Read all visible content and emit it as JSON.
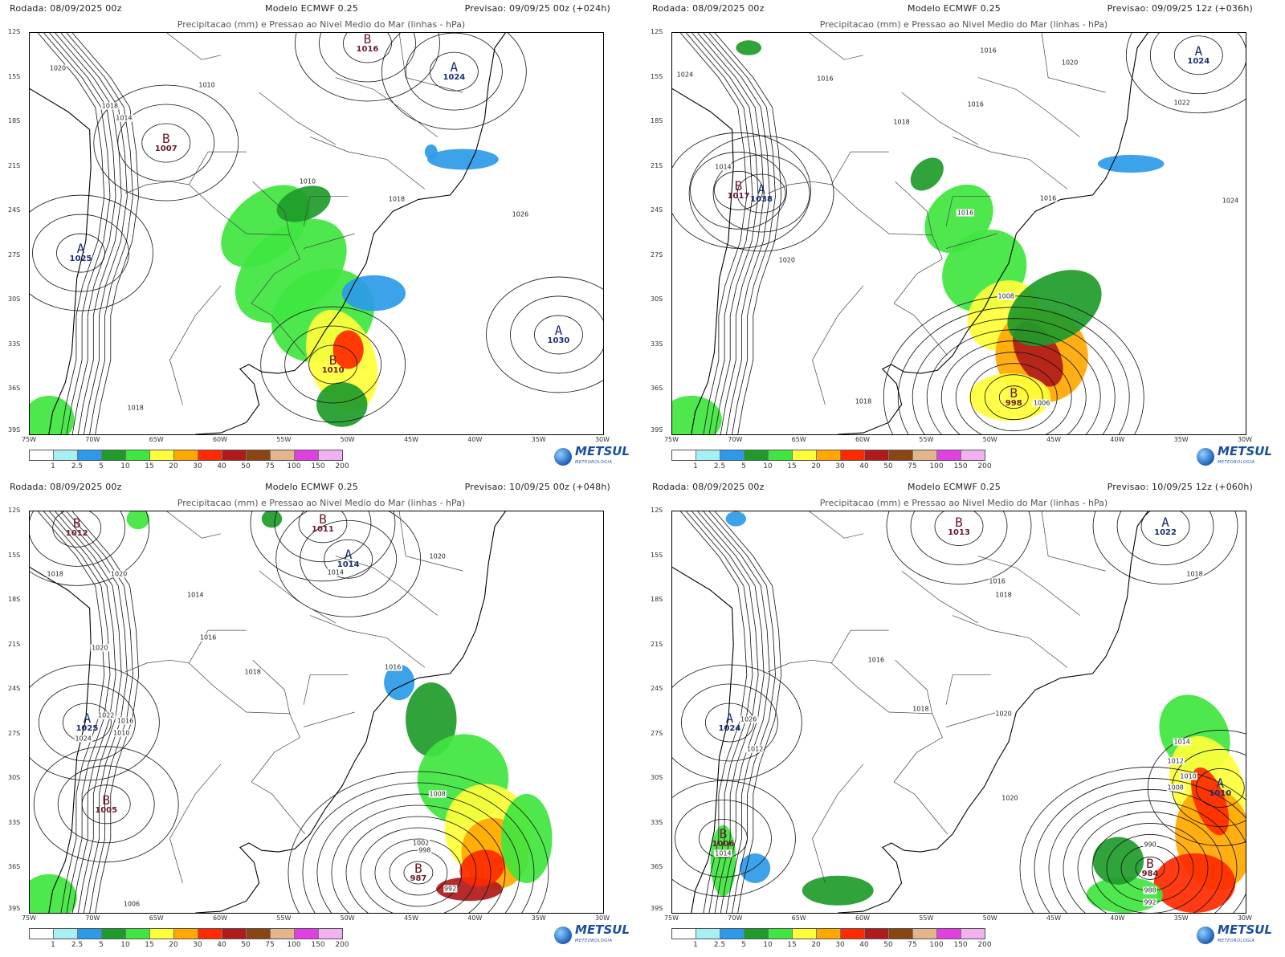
{
  "scale": {
    "ticks": [
      "1",
      "2.5",
      "5",
      "10",
      "15",
      "20",
      "30",
      "40",
      "50",
      "75",
      "100",
      "150",
      "200"
    ],
    "colors": [
      "#ffffff",
      "#a6f0f5",
      "#2b9ae8",
      "#1e9b2a",
      "#3fe63f",
      "#ffff3a",
      "#ffa800",
      "#ff2a00",
      "#b01a1a",
      "#8b4513",
      "#e4b48c",
      "#e040e0",
      "#f2b2f2"
    ]
  },
  "logo": {
    "name": "METSUL",
    "sub": "METEOROLOGIA"
  },
  "panels": [
    {
      "run": "Rodada: 08/09/2025 00z",
      "model": "Modelo ECMWF 0.25",
      "forecast": "Previsao: 09/09/25 00z (+024h)",
      "subtitle": "Precipitacao (mm) e Pressao ao Nivel Medio do Mar (linhas - hPa)",
      "lats": [
        "12S",
        "15S",
        "18S",
        "21S",
        "24S",
        "27S",
        "30S",
        "33S",
        "36S",
        "39S"
      ],
      "lons": [
        "75W",
        "70W",
        "65W",
        "60W",
        "55W",
        "50W",
        "45W",
        "40W",
        "35W",
        "30W"
      ],
      "centers": [
        {
          "type": "low",
          "letter": "B",
          "value": "1016",
          "lon": -48.5,
          "lat": -12.7
        },
        {
          "type": "high",
          "letter": "A",
          "value": "1024",
          "lon": -41.7,
          "lat": -14.6
        },
        {
          "type": "low",
          "letter": "B",
          "value": "1007",
          "lon": -64.3,
          "lat": -19.4
        },
        {
          "type": "high",
          "letter": "A",
          "value": "1025",
          "lon": -71.0,
          "lat": -26.8
        },
        {
          "type": "low",
          "letter": "B",
          "value": "1010",
          "lon": -51.2,
          "lat": -34.3
        },
        {
          "type": "high",
          "letter": "A",
          "value": "1030",
          "lon": -33.5,
          "lat": -32.3
        }
      ],
      "isobar_labels": [
        {
          "text": "1020",
          "lon": -72.8,
          "lat": -14.4
        },
        {
          "text": "1010",
          "lon": -61.1,
          "lat": -15.5
        },
        {
          "text": "1018",
          "lon": -68.7,
          "lat": -16.9
        },
        {
          "text": "1014",
          "lon": -67.6,
          "lat": -17.7
        },
        {
          "text": "1010",
          "lon": -53.2,
          "lat": -22.0
        },
        {
          "text": "1018",
          "lon": -46.2,
          "lat": -23.2
        },
        {
          "text": "1026",
          "lon": -36.5,
          "lat": -24.2
        },
        {
          "text": "1018",
          "lon": -66.7,
          "lat": -37.2
        }
      ],
      "rain": [
        {
          "lon": -56.5,
          "lat": -25.0,
          "v": 10,
          "rx": 4.0,
          "ry": 2.2,
          "rot": 40
        },
        {
          "lon": -54.5,
          "lat": -28.0,
          "v": 10,
          "rx": 5.0,
          "ry": 2.8,
          "rot": 40
        },
        {
          "lon": -52.0,
          "lat": -31.0,
          "v": 10,
          "rx": 4.2,
          "ry": 3.0,
          "rot": 30
        },
        {
          "lon": -50.5,
          "lat": -34.0,
          "v": 15,
          "rx": 2.6,
          "ry": 3.5,
          "rot": 20
        },
        {
          "lon": -50.0,
          "lat": -33.3,
          "v": 30,
          "rx": 1.2,
          "ry": 1.3,
          "rot": 0
        },
        {
          "lon": -50.5,
          "lat": -37.0,
          "v": 5,
          "rx": 2.0,
          "ry": 1.5,
          "rot": 0
        },
        {
          "lon": -48.0,
          "lat": -29.5,
          "v": 2.5,
          "rx": 2.5,
          "ry": 1.2,
          "rot": 0
        },
        {
          "lon": -53.5,
          "lat": -23.5,
          "v": 5,
          "rx": 2.2,
          "ry": 1.1,
          "rot": 20
        },
        {
          "lon": -41.0,
          "lat": -20.5,
          "v": 2.5,
          "rx": 2.8,
          "ry": 0.7,
          "rot": 0
        },
        {
          "lon": -43.5,
          "lat": -20.0,
          "v": 2.5,
          "rx": 0.5,
          "ry": 0.5,
          "rot": 0
        },
        {
          "lon": -73.5,
          "lat": -38.0,
          "v": 10,
          "rx": 2.0,
          "ry": 1.6,
          "rot": 0
        }
      ]
    },
    {
      "run": "Rodada: 08/09/2025 00z",
      "model": "Modelo ECMWF 0.25",
      "forecast": "Previsao: 09/09/25 12z (+036h)",
      "subtitle": "Precipitacao (mm) e Pressao ao Nivel Medio do Mar (linhas - hPa)",
      "lats": [
        "12S",
        "15S",
        "18S",
        "21S",
        "24S",
        "27S",
        "30S",
        "33S",
        "36S",
        "39S"
      ],
      "lons": [
        "75W",
        "70W",
        "65W",
        "60W",
        "55W",
        "50W",
        "45W",
        "40W",
        "35W",
        "30W"
      ],
      "centers": [
        {
          "type": "high",
          "letter": "A",
          "value": "1024",
          "lon": -33.7,
          "lat": -13.5
        },
        {
          "type": "low",
          "letter": "B",
          "value": "1017",
          "lon": -69.8,
          "lat": -22.6
        },
        {
          "type": "high",
          "letter": "A",
          "value": "1038",
          "lon": -68.0,
          "lat": -22.8
        },
        {
          "type": "low",
          "letter": "B",
          "value": "998",
          "lon": -48.2,
          "lat": -36.5
        }
      ],
      "isobar_labels": [
        {
          "text": "1016",
          "lon": -50.2,
          "lat": -13.2
        },
        {
          "text": "1020",
          "lon": -43.8,
          "lat": -14.0
        },
        {
          "text": "1024",
          "lon": -74.0,
          "lat": -14.8
        },
        {
          "text": "1016",
          "lon": -63.0,
          "lat": -15.1
        },
        {
          "text": "1016",
          "lon": -51.2,
          "lat": -16.8
        },
        {
          "text": "1022",
          "lon": -35.0,
          "lat": -16.7
        },
        {
          "text": "1018",
          "lon": -57.0,
          "lat": -18.0
        },
        {
          "text": "1014",
          "lon": -71.0,
          "lat": -21.0
        },
        {
          "text": "1024",
          "lon": -31.2,
          "lat": -23.3
        },
        {
          "text": "1016",
          "lon": -45.5,
          "lat": -23.1
        },
        {
          "text": "1016",
          "lon": -52.0,
          "lat": -24.1
        },
        {
          "text": "1020",
          "lon": -66.0,
          "lat": -27.3
        },
        {
          "text": "1018",
          "lon": -60.0,
          "lat": -36.8
        },
        {
          "text": "1006",
          "lon": -46.0,
          "lat": -36.9
        },
        {
          "text": "1008",
          "lon": -48.8,
          "lat": -29.7
        }
      ],
      "rain": [
        {
          "lon": -52.5,
          "lat": -24.5,
          "v": 10,
          "rx": 3.0,
          "ry": 2.0,
          "rot": 45
        },
        {
          "lon": -50.5,
          "lat": -28.0,
          "v": 10,
          "rx": 3.5,
          "ry": 2.6,
          "rot": 40
        },
        {
          "lon": -49.0,
          "lat": -31.0,
          "v": 15,
          "rx": 3.0,
          "ry": 2.2,
          "rot": 40
        },
        {
          "lon": -46.0,
          "lat": -33.7,
          "v": 20,
          "rx": 3.6,
          "ry": 3.2,
          "rot": 30
        },
        {
          "lon": -46.3,
          "lat": -33.6,
          "v": 40,
          "rx": 1.6,
          "ry": 2.4,
          "rot": 30
        },
        {
          "lon": -48.5,
          "lat": -36.5,
          "v": 15,
          "rx": 3.2,
          "ry": 1.6,
          "rot": 0
        },
        {
          "lon": -45.0,
          "lat": -30.5,
          "v": 5,
          "rx": 4.0,
          "ry": 2.2,
          "rot": 30
        },
        {
          "lon": -55.0,
          "lat": -21.5,
          "v": 5,
          "rx": 1.5,
          "ry": 0.9,
          "rot": 45
        },
        {
          "lon": -73.5,
          "lat": -38.0,
          "v": 10,
          "rx": 2.4,
          "ry": 1.6,
          "rot": 0
        },
        {
          "lon": -69.0,
          "lat": -13.0,
          "v": 5,
          "rx": 1.0,
          "ry": 0.5,
          "rot": 0
        },
        {
          "lon": -39.0,
          "lat": -20.8,
          "v": 2.5,
          "rx": 2.6,
          "ry": 0.6,
          "rot": 0
        }
      ]
    },
    {
      "run": "Rodada: 08/09/2025 00z",
      "model": "Modelo ECMWF 0.25",
      "forecast": "Previsao: 10/09/25 00z (+048h)",
      "subtitle": "Precipitacao (mm) e Pressao ao Nivel Medio do Mar (linhas - hPa)",
      "lats": [
        "12S",
        "15S",
        "18S",
        "21S",
        "24S",
        "27S",
        "30S",
        "33S",
        "36S",
        "39S"
      ],
      "lons": [
        "75W",
        "70W",
        "65W",
        "60W",
        "55W",
        "50W",
        "45W",
        "40W",
        "35W",
        "30W"
      ],
      "centers": [
        {
          "type": "low",
          "letter": "B",
          "value": "1012",
          "lon": -71.3,
          "lat": -13.1
        },
        {
          "type": "low",
          "letter": "B",
          "value": "1011",
          "lon": -52.0,
          "lat": -12.8
        },
        {
          "type": "high",
          "letter": "A",
          "value": "1014",
          "lon": -50.0,
          "lat": -15.2
        },
        {
          "type": "high",
          "letter": "A",
          "value": "1025",
          "lon": -70.5,
          "lat": -26.2
        },
        {
          "type": "low",
          "letter": "B",
          "value": "1005",
          "lon": -69.0,
          "lat": -31.7
        },
        {
          "type": "low",
          "letter": "B",
          "value": "987",
          "lon": -44.5,
          "lat": -36.3
        }
      ],
      "isobar_labels": [
        {
          "text": "1020",
          "lon": -43.0,
          "lat": -15.0
        },
        {
          "text": "1018",
          "lon": -73.0,
          "lat": -16.2
        },
        {
          "text": "1020",
          "lon": -68.0,
          "lat": -16.2
        },
        {
          "text": "1014",
          "lon": -51.0,
          "lat": -16.1
        },
        {
          "text": "1014",
          "lon": -62.0,
          "lat": -17.6
        },
        {
          "text": "1016",
          "lon": -61.0,
          "lat": -20.5
        },
        {
          "text": "1020",
          "lon": -69.5,
          "lat": -21.2
        },
        {
          "text": "1018",
          "lon": -57.5,
          "lat": -22.8
        },
        {
          "text": "1016",
          "lon": -46.5,
          "lat": -22.5
        },
        {
          "text": "1022",
          "lon": -69.0,
          "lat": -25.7
        },
        {
          "text": "1016",
          "lon": -67.5,
          "lat": -26.1
        },
        {
          "text": "1010",
          "lon": -67.8,
          "lat": -26.9
        },
        {
          "text": "1024",
          "lon": -70.8,
          "lat": -27.3
        },
        {
          "text": "1008",
          "lon": -43.0,
          "lat": -31.0
        },
        {
          "text": "1002",
          "lon": -44.3,
          "lat": -34.3
        },
        {
          "text": "998",
          "lon": -44.0,
          "lat": -34.8
        },
        {
          "text": "992",
          "lon": -42.0,
          "lat": -37.4
        },
        {
          "text": "1006",
          "lon": -67.0,
          "lat": -38.4
        }
      ],
      "rain": [
        {
          "lon": -43.5,
          "lat": -26.0,
          "v": 5,
          "rx": 2.0,
          "ry": 2.5,
          "rot": 0
        },
        {
          "lon": -41.0,
          "lat": -30.0,
          "v": 10,
          "rx": 3.6,
          "ry": 3.0,
          "rot": 30
        },
        {
          "lon": -39.0,
          "lat": -33.5,
          "v": 15,
          "rx": 3.4,
          "ry": 3.2,
          "rot": 20
        },
        {
          "lon": -38.5,
          "lat": -35.0,
          "v": 20,
          "rx": 2.6,
          "ry": 2.4,
          "rot": 20
        },
        {
          "lon": -40.5,
          "lat": -37.4,
          "v": 40,
          "rx": 2.6,
          "ry": 0.8,
          "rot": 0
        },
        {
          "lon": -39.5,
          "lat": -36.0,
          "v": 30,
          "rx": 1.8,
          "ry": 1.2,
          "rot": 20
        },
        {
          "lon": -36.0,
          "lat": -34.0,
          "v": 10,
          "rx": 2.0,
          "ry": 3.0,
          "rot": 0
        },
        {
          "lon": -46.0,
          "lat": -23.5,
          "v": 2.5,
          "rx": 1.2,
          "ry": 1.2,
          "rot": 0
        },
        {
          "lon": -73.5,
          "lat": -38.0,
          "v": 10,
          "rx": 2.2,
          "ry": 1.6,
          "rot": 0
        },
        {
          "lon": -66.5,
          "lat": -12.5,
          "v": 10,
          "rx": 0.9,
          "ry": 0.7,
          "rot": 0
        },
        {
          "lon": -56.0,
          "lat": -12.5,
          "v": 5,
          "rx": 0.8,
          "ry": 0.6,
          "rot": 0
        }
      ]
    },
    {
      "run": "Rodada: 08/09/2025 00z",
      "model": "Modelo ECMWF 0.25",
      "forecast": "Previsao: 10/09/25 12z (+060h)",
      "subtitle": "Precipitacao (mm) e Pressao ao Nivel Medio do Mar (linhas - hPa)",
      "lats": [
        "12S",
        "15S",
        "18S",
        "21S",
        "24S",
        "27S",
        "30S",
        "33S",
        "36S",
        "39S"
      ],
      "lons": [
        "75W",
        "70W",
        "65W",
        "60W",
        "55W",
        "50W",
        "45W",
        "40W",
        "35W",
        "30W"
      ],
      "centers": [
        {
          "type": "low",
          "letter": "B",
          "value": "1013",
          "lon": -52.5,
          "lat": -13.0
        },
        {
          "type": "high",
          "letter": "A",
          "value": "1022",
          "lon": -36.3,
          "lat": -13.0
        },
        {
          "type": "high",
          "letter": "A",
          "value": "1024",
          "lon": -70.5,
          "lat": -26.2
        },
        {
          "type": "high",
          "letter": "A",
          "value": "1010",
          "lon": -32.0,
          "lat": -30.6
        },
        {
          "type": "low",
          "letter": "B",
          "value": "1006",
          "lon": -71.0,
          "lat": -34.0
        },
        {
          "type": "low",
          "letter": "B",
          "value": "984",
          "lon": -37.5,
          "lat": -36.0
        }
      ],
      "isobar_labels": [
        {
          "text": "1018",
          "lon": -34.0,
          "lat": -16.2
        },
        {
          "text": "1016",
          "lon": -49.5,
          "lat": -16.7
        },
        {
          "text": "1018",
          "lon": -49.0,
          "lat": -17.6
        },
        {
          "text": "1016",
          "lon": -59.0,
          "lat": -22.0
        },
        {
          "text": "1018",
          "lon": -55.5,
          "lat": -25.3
        },
        {
          "text": "1020",
          "lon": -49.0,
          "lat": -25.6
        },
        {
          "text": "1026",
          "lon": -69.0,
          "lat": -26.0
        },
        {
          "text": "1012",
          "lon": -68.5,
          "lat": -28.0
        },
        {
          "text": "1020",
          "lon": -48.5,
          "lat": -31.3
        },
        {
          "text": "1014",
          "lon": -71.0,
          "lat": -35.0
        },
        {
          "text": "990",
          "lon": -37.5,
          "lat": -34.4
        },
        {
          "text": "988",
          "lon": -37.5,
          "lat": -37.5
        },
        {
          "text": "992",
          "lon": -37.5,
          "lat": -38.3
        },
        {
          "text": "1014",
          "lon": -35.0,
          "lat": -27.5
        },
        {
          "text": "1012",
          "lon": -35.5,
          "lat": -28.8
        },
        {
          "text": "1010",
          "lon": -34.5,
          "lat": -29.8
        },
        {
          "text": "1008",
          "lon": -35.5,
          "lat": -30.6
        }
      ],
      "rain": [
        {
          "lon": -34.0,
          "lat": -27.0,
          "v": 10,
          "rx": 2.6,
          "ry": 2.8,
          "rot": 30
        },
        {
          "lon": -33.0,
          "lat": -30.5,
          "v": 15,
          "rx": 2.8,
          "ry": 3.5,
          "rot": 20
        },
        {
          "lon": -32.5,
          "lat": -34.0,
          "v": 20,
          "rx": 3.0,
          "ry": 3.5,
          "rot": 10
        },
        {
          "lon": -32.8,
          "lat": -31.5,
          "v": 30,
          "rx": 1.2,
          "ry": 2.4,
          "rot": 20
        },
        {
          "lon": -34.0,
          "lat": -37.0,
          "v": 30,
          "rx": 3.2,
          "ry": 2.0,
          "rot": 0
        },
        {
          "lon": -39.5,
          "lat": -37.8,
          "v": 10,
          "rx": 3.0,
          "ry": 1.2,
          "rot": 0
        },
        {
          "lon": -40.0,
          "lat": -35.5,
          "v": 5,
          "rx": 2.0,
          "ry": 1.6,
          "rot": 0
        },
        {
          "lon": -71.0,
          "lat": -35.5,
          "v": 10,
          "rx": 1.0,
          "ry": 2.4,
          "rot": 0
        },
        {
          "lon": -62.0,
          "lat": -37.5,
          "v": 5,
          "rx": 2.8,
          "ry": 1.0,
          "rot": 0
        },
        {
          "lon": -68.5,
          "lat": -36.0,
          "v": 2.5,
          "rx": 1.2,
          "ry": 1.0,
          "rot": 0
        },
        {
          "lon": -70.0,
          "lat": -12.5,
          "v": 2.5,
          "rx": 0.8,
          "ry": 0.5,
          "rot": 0
        }
      ]
    }
  ]
}
